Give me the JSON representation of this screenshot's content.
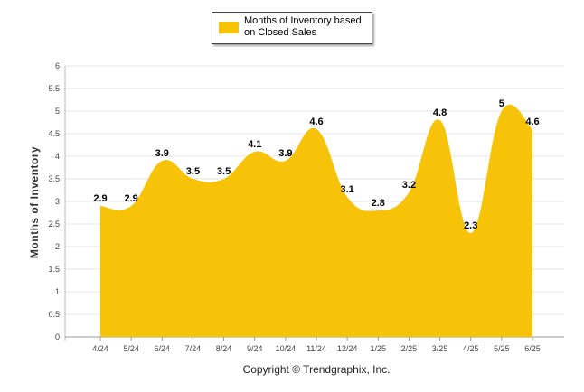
{
  "chart_data": {
    "type": "area",
    "categories": [
      "4/24",
      "5/24",
      "6/24",
      "7/24",
      "8/24",
      "9/24",
      "10/24",
      "11/24",
      "12/24",
      "1/25",
      "2/25",
      "3/25",
      "4/25",
      "5/25",
      "6/25"
    ],
    "series": [
      {
        "name": "Months of Inventory based on Closed Sales",
        "values": [
          2.9,
          2.9,
          3.9,
          3.5,
          3.5,
          4.1,
          3.9,
          4.6,
          3.1,
          2.8,
          3.2,
          4.8,
          2.3,
          5,
          4.6
        ]
      }
    ],
    "ylabel": "Months of Inventory",
    "ylim": [
      0,
      6
    ],
    "yticks": [
      "0",
      "0.5",
      "1",
      "1.5",
      "2",
      "2.5",
      "3",
      "3.5",
      "4",
      "4.5",
      "5",
      "5.5",
      "6"
    ],
    "grid": true,
    "legend": "top-center"
  },
  "colors": {
    "area": "#F7C308",
    "grid": "#e4e4e4"
  },
  "footer": {
    "copyright": "Copyright © Trendgraphix, Inc."
  }
}
